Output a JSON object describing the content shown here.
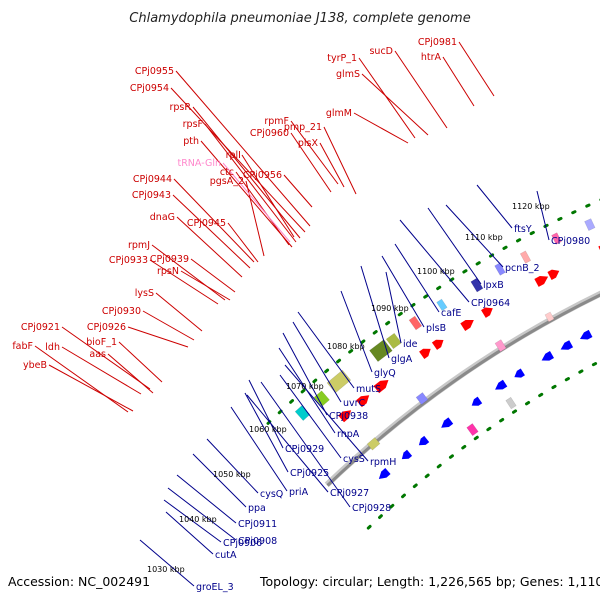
{
  "title": "Chlamydophila pneumoniae J138, complete genome",
  "footer": {
    "accession": "Accession: NC_002491",
    "summary": "Topology: circular; Length: 1,226,565 bp; Genes: 1,110"
  },
  "ticks": [
    "1030 kbp",
    "1040 kbp",
    "1050 kbp",
    "1060 kbp",
    "1070 kbp",
    "1080 kbp",
    "1090 kbp",
    "1100 kbp",
    "1110 kbp",
    "1120 kbp"
  ],
  "labels_forward": [
    "CPj0955",
    "CPj0954",
    "rpsR",
    "rpsF",
    "pth",
    "rplI",
    "ctc",
    "CPj0944",
    "pgsA_2",
    "CPj0943",
    "dnaG",
    "CPj0945",
    "rpmJ",
    "CPj0939",
    "CPj0933",
    "rpsN",
    "lysS",
    "CPj0930",
    "CPj0926",
    "CPj0921",
    "bioF_1",
    "fabF",
    "ldh",
    "aas",
    "ybeB",
    "rpmF",
    "CPj0960",
    "pmp_21",
    "plsX",
    "CPj0956",
    "glmM",
    "tyrP_1",
    "glmS",
    "sucD",
    "CPj0981",
    "htrA"
  ],
  "labels_rna": [
    "tRNA-Gln"
  ],
  "labels_reverse": [
    "ftsY",
    "CPj0980",
    "pcnB_2",
    "lpxB",
    "CPj0964",
    "cafE",
    "plsB",
    "ide",
    "glgA",
    "glyQ",
    "mutS",
    "uvrC",
    "CPj0938",
    "rnpA",
    "rpmH",
    "cysS",
    "CPj0929",
    "CPj0925",
    "CPj0927",
    "priA",
    "CPj0928",
    "cysQ",
    "ppa",
    "CPj0911",
    "CPj0908",
    "CPj0906",
    "cutA",
    "groEL_3"
  ],
  "colors": {
    "forward_gene": "#ff0000",
    "reverse_gene": "#0000ff",
    "backbone": "#999999",
    "ring_dots": "#007700",
    "forward_label": "#cc0000",
    "reverse_label": "#00008b",
    "rna_label": "#ff88cc"
  }
}
